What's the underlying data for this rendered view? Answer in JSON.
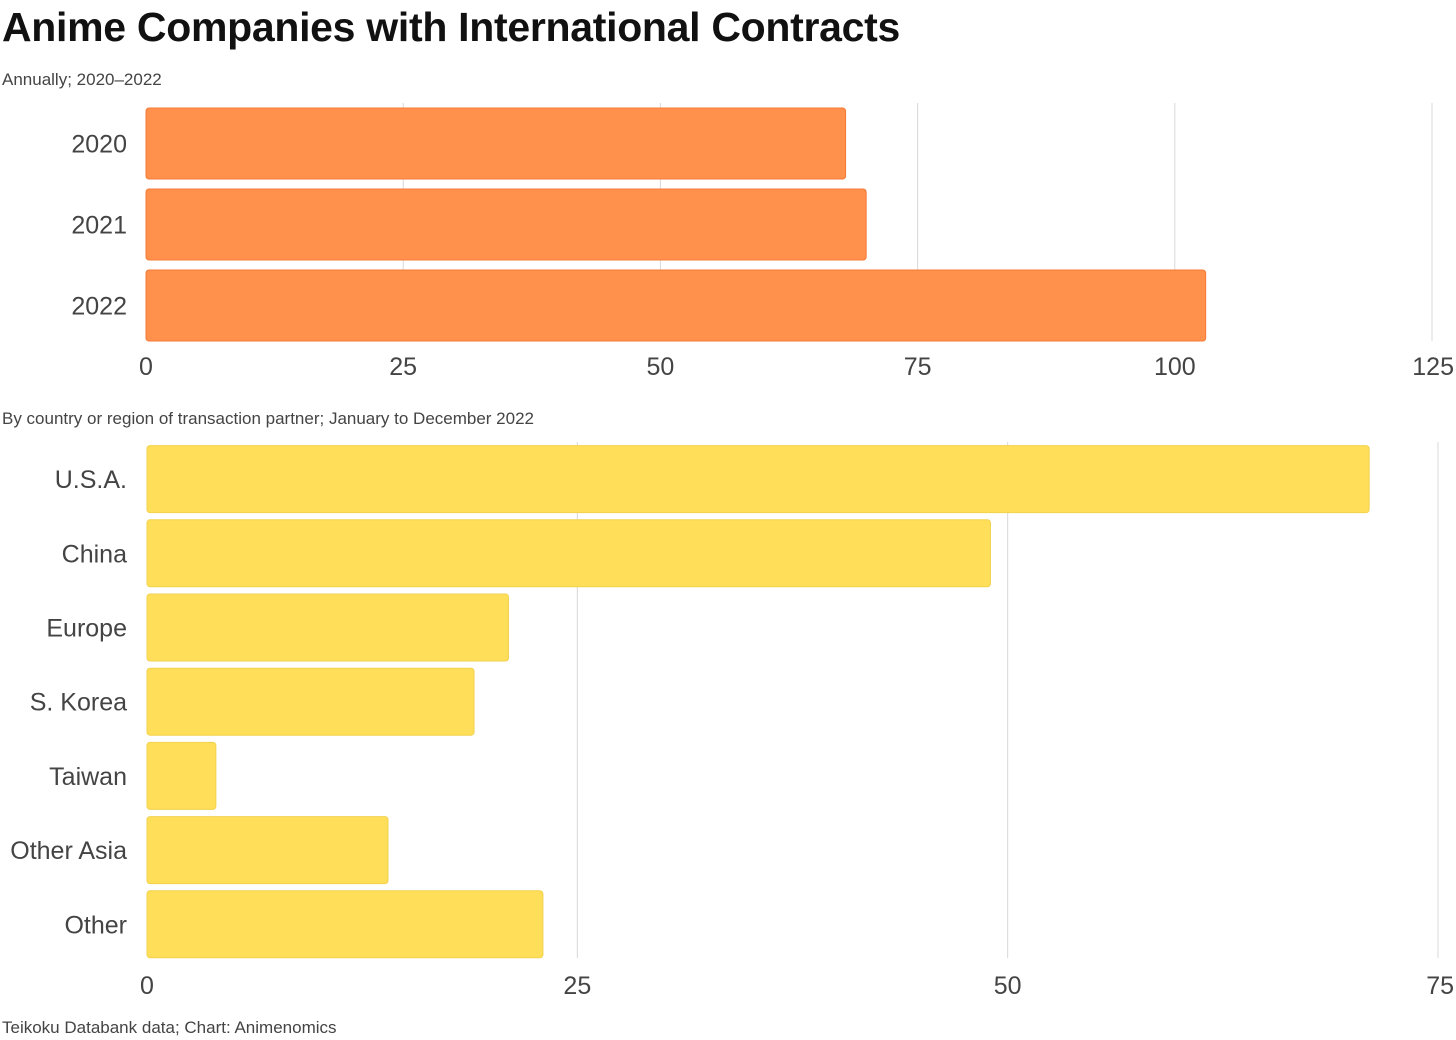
{
  "title": "Anime Companies with International Contracts",
  "footer": {
    "source": "Teikoku Databank data; Chart: Animenomics"
  },
  "chart_data": [
    {
      "type": "bar",
      "orientation": "horizontal",
      "subtitle": "Annually; 2020–2022",
      "categories": [
        "2020",
        "2021",
        "2022"
      ],
      "values": [
        68,
        70,
        103
      ],
      "xlim": [
        0,
        125
      ],
      "xticks": [
        "0",
        "25",
        "50",
        "75",
        "100",
        "125"
      ],
      "grid": true,
      "color": "#FF914D",
      "border_color": "#F47A35"
    },
    {
      "type": "bar",
      "orientation": "horizontal",
      "subtitle": "By country or region of transaction partner; January to December 2022",
      "categories": [
        "U.S.A.",
        "China",
        "Europe",
        "S. Korea",
        "Taiwan",
        "Other Asia",
        "Other"
      ],
      "values": [
        71,
        49,
        21,
        19,
        4,
        14,
        23
      ],
      "xlim": [
        0,
        75
      ],
      "xticks": [
        "0",
        "25",
        "50",
        "75"
      ],
      "grid": true,
      "color": "#FFDE59",
      "border_color": "#F2D24E"
    }
  ]
}
